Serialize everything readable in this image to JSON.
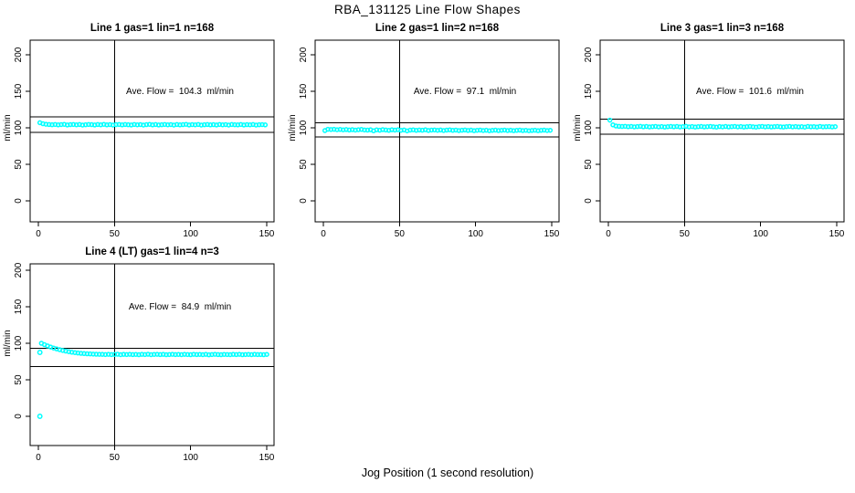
{
  "title": "RBA_131125  Line Flow Shapes",
  "xlabel": "Jog Position (1 second resolution)",
  "ylabel": "ml/min",
  "point_color": "#00ffff",
  "line_color": "#000000",
  "chart_data": [
    {
      "type": "scatter",
      "title": "Line 1 gas=1 lin=1 n=168",
      "annotation": "Ave. Flow =  104.3  ml/min",
      "ave_flow_ml_min": 104.3,
      "n": 168,
      "xlim": [
        0,
        150
      ],
      "ylim": [
        0,
        200
      ],
      "x_ticks": [
        0,
        50,
        100,
        150
      ],
      "y_ticks": [
        0,
        50,
        100,
        150,
        200
      ],
      "vline_x": 50,
      "hlines": [
        114.7,
        93.9
      ],
      "x_start": 1,
      "x_step": 2,
      "y": [
        107.0,
        105.6,
        104.9,
        104.5,
        104.2,
        104.6,
        104.0,
        104.4,
        104.7,
        103.9,
        104.3,
        104.6,
        104.1,
        104.5,
        103.8,
        104.2,
        104.6,
        104.3,
        103.9,
        104.5,
        104.1,
        104.7,
        104.0,
        104.4,
        103.8,
        104.3,
        104.6,
        104.0,
        104.5,
        104.2,
        103.9,
        104.6,
        104.1,
        104.4,
        103.8,
        104.3,
        104.7,
        104.0,
        104.5,
        103.9,
        104.2,
        104.6,
        104.1,
        104.4,
        103.8,
        104.5,
        104.0,
        104.3,
        104.7,
        103.9,
        104.4,
        104.1,
        104.6,
        103.8,
        104.2,
        104.5,
        104.0,
        104.3,
        103.9,
        104.6,
        104.1,
        104.4,
        103.8,
        104.5,
        104.2,
        104.0,
        104.6,
        103.9,
        104.3,
        104.1,
        104.5,
        103.8,
        104.2,
        104.4,
        104.0
      ],
      "extra_points": []
    },
    {
      "type": "scatter",
      "title": "Line 2 gas=1 lin=2 n=168",
      "annotation": "Ave. Flow =  97.1  ml/min",
      "ave_flow_ml_min": 97.1,
      "n": 168,
      "xlim": [
        0,
        150
      ],
      "ylim": [
        0,
        200
      ],
      "x_ticks": [
        0,
        50,
        100,
        150
      ],
      "y_ticks": [
        0,
        50,
        100,
        150,
        200
      ],
      "vline_x": 50,
      "hlines": [
        106.8,
        87.4
      ],
      "x_start": 1,
      "x_step": 2,
      "y": [
        96.2,
        98.0,
        97.7,
        97.9,
        97.4,
        97.8,
        97.2,
        97.6,
        97.0,
        97.5,
        96.9,
        97.4,
        97.8,
        97.1,
        96.8,
        97.3,
        95.9,
        97.2,
        96.7,
        97.5,
        97.0,
        96.5,
        97.3,
        96.9,
        97.4,
        96.6,
        97.1,
        95.8,
        96.8,
        97.2,
        96.5,
        97.0,
        96.7,
        97.3,
        96.4,
        96.9,
        97.1,
        96.6,
        97.0,
        96.3,
        96.8,
        97.2,
        96.5,
        96.9,
        96.2,
        96.7,
        97.0,
        96.4,
        96.8,
        96.1,
        96.6,
        96.9,
        96.3,
        96.7,
        96.0,
        96.5,
        96.8,
        96.2,
        96.6,
        96.9,
        96.3,
        96.7,
        96.1,
        96.5,
        96.8,
        96.2,
        96.6,
        96.0,
        96.4,
        96.7,
        96.1,
        96.5,
        96.8,
        96.3,
        96.6
      ],
      "extra_points": []
    },
    {
      "type": "scatter",
      "title": "Line 3 gas=1 lin=3 n=168",
      "annotation": "Ave. Flow =  101.6  ml/min",
      "ave_flow_ml_min": 101.6,
      "n": 168,
      "xlim": [
        0,
        150
      ],
      "ylim": [
        0,
        200
      ],
      "x_ticks": [
        0,
        50,
        100,
        150
      ],
      "y_ticks": [
        0,
        50,
        100,
        150,
        200
      ],
      "vline_x": 50,
      "hlines": [
        111.8,
        91.4
      ],
      "x_start": 1,
      "x_step": 2,
      "y": [
        110.5,
        104.0,
        102.5,
        102.0,
        101.8,
        102.1,
        101.5,
        101.9,
        101.3,
        101.7,
        102.0,
        101.4,
        101.8,
        101.2,
        101.6,
        101.9,
        101.3,
        101.7,
        101.1,
        101.5,
        101.9,
        101.4,
        101.8,
        101.2,
        101.6,
        102.0,
        101.3,
        101.7,
        101.1,
        101.5,
        101.8,
        101.2,
        101.6,
        101.9,
        101.4,
        101.0,
        101.7,
        101.3,
        101.8,
        101.2,
        101.6,
        101.9,
        101.3,
        101.7,
        101.1,
        101.5,
        101.8,
        101.4,
        101.0,
        101.6,
        101.9,
        101.3,
        101.7,
        101.2,
        101.5,
        101.8,
        101.4,
        101.1,
        101.6,
        101.9,
        101.3,
        101.7,
        101.2,
        101.5,
        101.0,
        101.8,
        101.4,
        101.6,
        101.1,
        101.9,
        101.3,
        101.5,
        101.7,
        101.2,
        101.6
      ],
      "extra_points": []
    },
    {
      "type": "scatter",
      "title": "Line 4 (LT) gas=1 lin=4 n=3",
      "annotation": "Ave. Flow =  84.9  ml/min",
      "ave_flow_ml_min": 84.9,
      "n": 3,
      "xlim": [
        0,
        150
      ],
      "ylim": [
        0,
        200
      ],
      "x_ticks": [
        0,
        50,
        100,
        150
      ],
      "y_ticks": [
        0,
        50,
        100,
        150,
        200
      ],
      "vline_x": 50,
      "hlines": [
        93.4,
        67.9
      ],
      "x_start": 2,
      "x_step": 2,
      "y": [
        100.0,
        98.1,
        96.4,
        94.9,
        93.5,
        92.3,
        91.2,
        90.2,
        89.3,
        88.5,
        87.8,
        87.2,
        86.7,
        86.2,
        85.9,
        85.6,
        85.4,
        85.2,
        85.0,
        84.9,
        84.8,
        84.6,
        84.9,
        84.5,
        84.7,
        85.0,
        84.4,
        84.8,
        84.6,
        84.9,
        84.5,
        84.7,
        84.3,
        84.8,
        84.6,
        85.0,
        84.4,
        84.7,
        84.9,
        84.5,
        84.8,
        84.3,
        84.6,
        84.9,
        84.5,
        84.7,
        84.4,
        84.8,
        84.6,
        84.3,
        84.9,
        84.5,
        84.7,
        84.4,
        84.8,
        84.2,
        84.6,
        84.9,
        84.5,
        84.3,
        84.7,
        84.6,
        84.4,
        84.8,
        84.5,
        84.9,
        84.3,
        84.6,
        84.7,
        84.4,
        84.8,
        84.5,
        84.6,
        84.3,
        84.7
      ],
      "extra_points": [
        [
          1,
          0
        ],
        [
          1,
          87.5
        ]
      ]
    }
  ]
}
